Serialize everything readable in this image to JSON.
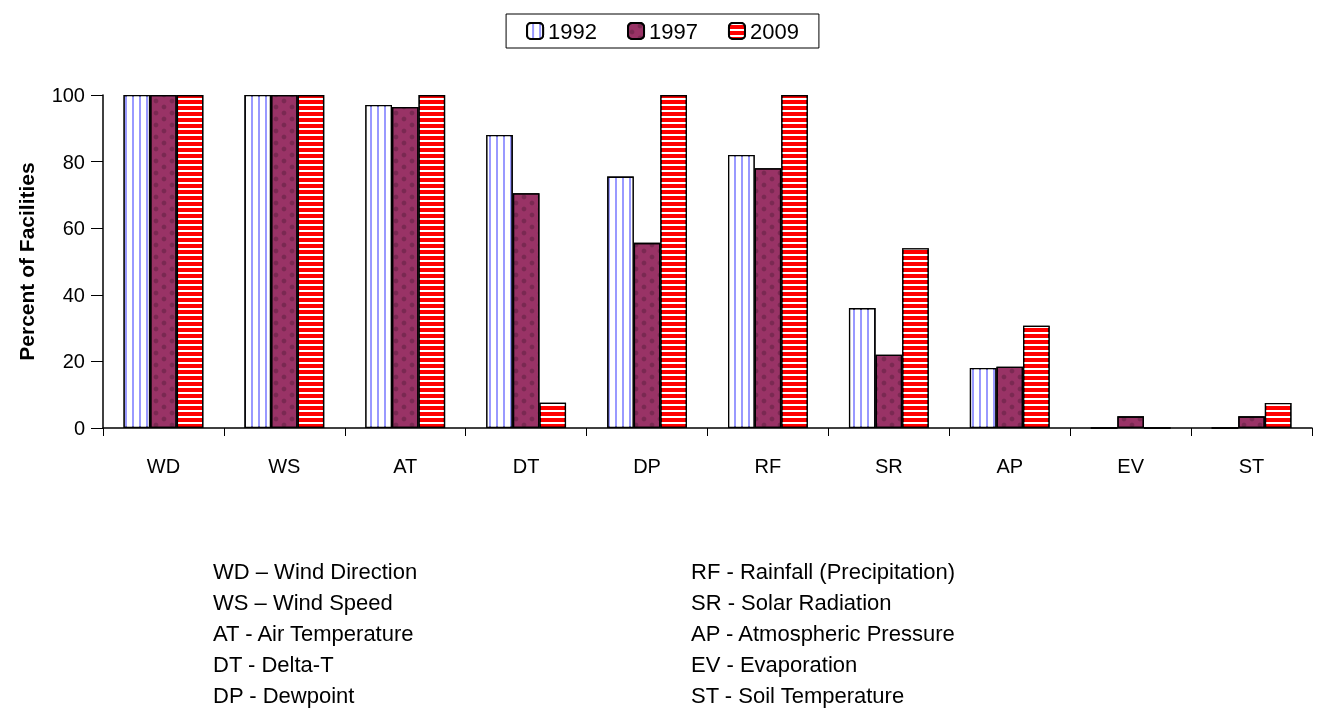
{
  "chart_data": {
    "type": "bar",
    "ylabel": "Percent of Facilities",
    "categories": [
      "WD",
      "WS",
      "AT",
      "DT",
      "DP",
      "RF",
      "SR",
      "AP",
      "EV",
      "ST"
    ],
    "series": [
      {
        "name": "1992",
        "color": "#9999ff",
        "values": [
          100,
          100,
          97,
          88,
          75.5,
          82,
          36,
          18,
          0,
          0
        ]
      },
      {
        "name": "1997",
        "color": "#993366",
        "values": [
          100,
          100,
          96.4,
          70.5,
          55.6,
          78,
          22,
          18.4,
          3.5,
          3.5
        ]
      },
      {
        "name": "2009",
        "color": "#ff0000",
        "values": [
          100,
          100,
          100,
          7.6,
          100,
          100,
          54,
          30.7,
          0,
          7.5
        ]
      }
    ],
    "ylim": [
      0,
      100
    ],
    "yticks": [
      0,
      20,
      40,
      60,
      80,
      100
    ],
    "grid": false,
    "legend": "top",
    "annotations": [
      "WD – Wind Direction",
      "WS – Wind Speed",
      "AT - Air Temperature",
      "DT - Delta-T",
      "DP - Dewpoint",
      "RF - Rainfall (Precipitation)",
      "SR - Solar Radiation",
      "AP - Atmospheric Pressure",
      "EV - Evaporation",
      "ST - Soil Temperature"
    ]
  }
}
